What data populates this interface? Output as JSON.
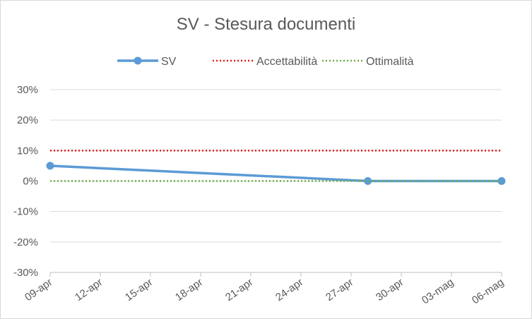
{
  "chart_data": {
    "type": "line",
    "title": "SV - Stesura documenti",
    "x_tick_labels": [
      "09-apr",
      "12-apr",
      "15-apr",
      "18-apr",
      "21-apr",
      "24-apr",
      "27-apr",
      "30-apr",
      "03-mag",
      "06-mag"
    ],
    "y_tick_labels": [
      "30%",
      "20%",
      "10%",
      "0%",
      "-10%",
      "-20%",
      "-30%"
    ],
    "ylim": [
      -0.3,
      0.3
    ],
    "xlim": [
      "2018-04-09",
      "2018-05-06"
    ],
    "grid": true,
    "legend_position": "top",
    "series": [
      {
        "name": "SV",
        "color": "#5b9bd5",
        "style": "solid-marker",
        "x": [
          "2018-04-09",
          "2018-04-28",
          "2018-05-06"
        ],
        "values": [
          0.05,
          0.0,
          0.0
        ]
      },
      {
        "name": "Accettabilità",
        "color": "#e31a1c",
        "style": "dotted",
        "x": [
          "2018-04-09",
          "2018-05-06"
        ],
        "values": [
          0.1,
          0.1
        ]
      },
      {
        "name": "Ottimalità",
        "color": "#70ad47",
        "style": "dotted",
        "x": [
          "2018-04-09",
          "2018-05-06"
        ],
        "values": [
          0.0,
          0.0
        ]
      }
    ]
  }
}
